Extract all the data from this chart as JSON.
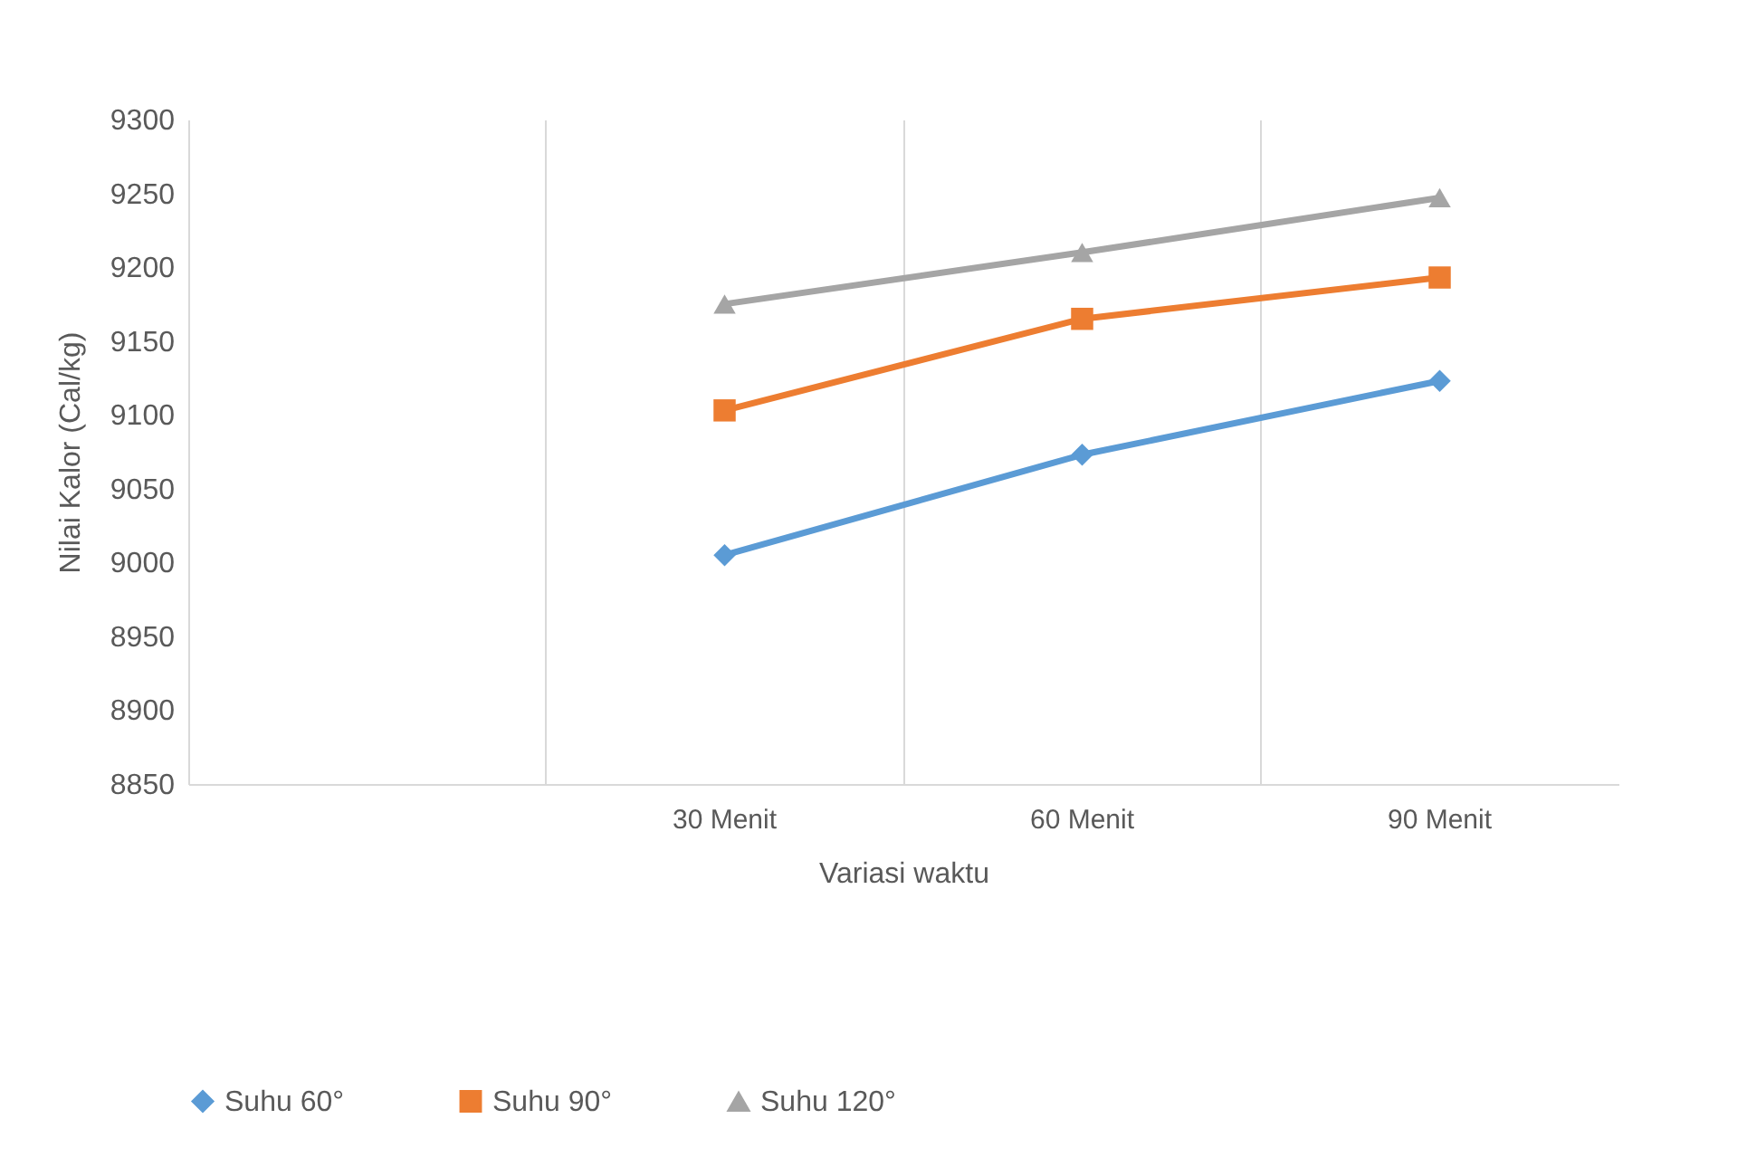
{
  "chart_data": {
    "type": "line",
    "xlabel": "Variasi waktu",
    "ylabel": "Nilai Kalor (Cal/kg)",
    "categories": [
      null,
      "30 Menit",
      "60 Menit",
      "90 Menit"
    ],
    "series": [
      {
        "name": "Suhu 60°",
        "color": "#5b9bd5",
        "marker": "diamond",
        "values": [
          null,
          9005,
          9073,
          9123
        ]
      },
      {
        "name": "Suhu 90°",
        "color": "#ed7d31",
        "marker": "square",
        "values": [
          null,
          9103,
          9165,
          9193
        ]
      },
      {
        "name": "Suhu 120°",
        "color": "#a5a5a5",
        "marker": "triangle",
        "values": [
          null,
          9175,
          9210,
          9247
        ]
      }
    ],
    "ylim": [
      8850,
      9300
    ],
    "yticks": [
      8850,
      8900,
      8950,
      9000,
      9050,
      9100,
      9150,
      9200,
      9250,
      9300
    ],
    "grid": "x",
    "legend": "bottom"
  }
}
